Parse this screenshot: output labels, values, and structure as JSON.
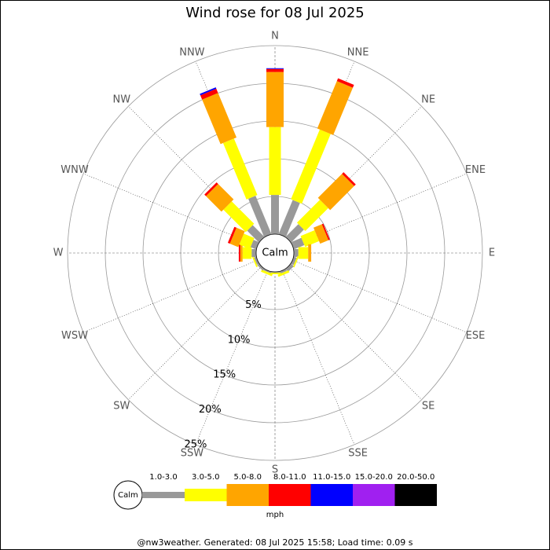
{
  "chart_data": {
    "type": "windrose",
    "title": "Wind rose for 08 Jul 2025",
    "directions": [
      "N",
      "NNE",
      "NE",
      "ENE",
      "E",
      "ESE",
      "SE",
      "SSE",
      "S",
      "SSW",
      "SW",
      "WSW",
      "W",
      "WNW",
      "NW",
      "NNW"
    ],
    "calm_label": "Calm",
    "rlim": [
      0,
      25
    ],
    "rticks": [
      {
        "value": 5,
        "label": "5%"
      },
      {
        "value": 10,
        "label": "10%"
      },
      {
        "value": 15,
        "label": "15%"
      },
      {
        "value": 20,
        "label": "20%"
      },
      {
        "value": 25,
        "label": "25%"
      }
    ],
    "series": [
      {
        "name": "1.0-3.0",
        "color": "#999999",
        "values": [
          5.2,
          4.9,
          2.4,
          1.5,
          0.6,
          0.4,
          0.5,
          0.3,
          0.1,
          0.2,
          0.3,
          0.3,
          0.6,
          0.8,
          2.2,
          5.5
        ]
      },
      {
        "name": "3.0-5.0",
        "color": "#ffff00",
        "values": [
          9.0,
          10.0,
          4.3,
          2.0,
          1.3,
          0.2,
          0,
          0.3,
          0.2,
          0.3,
          0,
          0.2,
          1.2,
          1.5,
          4.2,
          8.1
        ]
      },
      {
        "name": "5.0-8.0",
        "color": "#ffa500",
        "values": [
          7.3,
          6.8,
          4.5,
          1.2,
          0.4,
          0,
          0,
          0,
          0,
          0,
          0,
          0,
          0.3,
          1.2,
          2.9,
          6.4
        ]
      },
      {
        "name": "8.0-11.0",
        "color": "#ff0000",
        "values": [
          0.4,
          0.4,
          0.3,
          0.2,
          0,
          0,
          0,
          0,
          0,
          0,
          0,
          0,
          0.2,
          0.3,
          0.3,
          0.6
        ]
      },
      {
        "name": "11.0-15.0",
        "color": "#0000ff",
        "values": [
          0.1,
          0,
          0,
          0,
          0,
          0,
          0,
          0,
          0,
          0,
          0,
          0,
          0,
          0,
          0,
          0.2
        ]
      },
      {
        "name": "15.0-20.0",
        "color": "#a020f0",
        "values": [
          0,
          0,
          0,
          0,
          0,
          0,
          0,
          0,
          0,
          0,
          0,
          0,
          0,
          0,
          0,
          0
        ]
      },
      {
        "name": "20.0-50.0",
        "color": "#000000",
        "values": [
          0,
          0,
          0,
          0,
          0,
          0,
          0,
          0,
          0,
          0,
          0,
          0,
          0,
          0,
          0,
          0
        ]
      }
    ],
    "unit": "mph",
    "footer": "@nw3weather. Generated: 08 Jul 2025 15:58; Load time: 0.09 s"
  }
}
